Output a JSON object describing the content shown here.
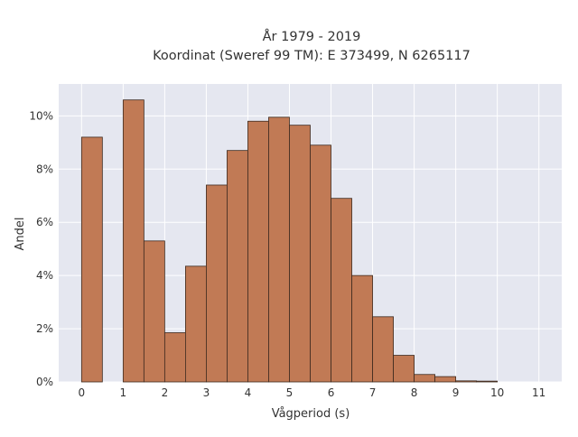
{
  "chart_data": {
    "type": "bar",
    "title_lines": [
      "År 1979 - 2019",
      "Koordinat (Sweref 99 TM): E 373499, N 6265117"
    ],
    "xlabel": "Vågperiod (s)",
    "ylabel": "Andel",
    "xlim": [
      -0.55,
      11.55
    ],
    "ylim": [
      0,
      11.2
    ],
    "x_ticks": [
      0,
      1,
      2,
      3,
      4,
      5,
      6,
      7,
      8,
      9,
      10,
      11
    ],
    "x_tick_labels": [
      "0",
      "1",
      "2",
      "3",
      "4",
      "5",
      "6",
      "7",
      "8",
      "9",
      "10",
      "11"
    ],
    "y_ticks": [
      0,
      2,
      4,
      6,
      8,
      10
    ],
    "y_tick_labels": [
      "0%",
      "2%",
      "4%",
      "6%",
      "8%",
      "10%"
    ],
    "bin_width": 0.5,
    "bins": [
      {
        "start": 0.0,
        "value": 9.2
      },
      {
        "start": 1.0,
        "value": 10.6
      },
      {
        "start": 1.5,
        "value": 5.3
      },
      {
        "start": 2.0,
        "value": 1.85
      },
      {
        "start": 2.5,
        "value": 4.35
      },
      {
        "start": 3.0,
        "value": 7.4
      },
      {
        "start": 3.5,
        "value": 8.7
      },
      {
        "start": 4.0,
        "value": 9.8
      },
      {
        "start": 4.5,
        "value": 9.95
      },
      {
        "start": 5.0,
        "value": 9.65
      },
      {
        "start": 5.5,
        "value": 8.9
      },
      {
        "start": 6.0,
        "value": 6.9
      },
      {
        "start": 6.5,
        "value": 4.0
      },
      {
        "start": 7.0,
        "value": 2.45
      },
      {
        "start": 7.5,
        "value": 1.0
      },
      {
        "start": 8.0,
        "value": 0.28
      },
      {
        "start": 8.5,
        "value": 0.2
      },
      {
        "start": 9.0,
        "value": 0.04
      },
      {
        "start": 9.5,
        "value": 0.03
      }
    ],
    "grid": true,
    "colors": {
      "bar_fill": "#c17a55",
      "bar_stroke": "#3d2a1f",
      "plot_bg": "#e5e7f0",
      "grid": "#ffffff"
    }
  }
}
